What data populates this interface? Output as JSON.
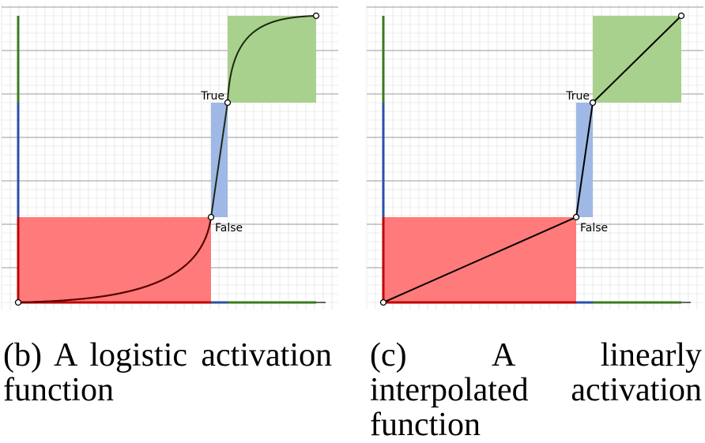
{
  "panels": [
    {
      "id": "b",
      "curve": "logistic",
      "caption": "(b) A logistic activation function",
      "label_true": "True",
      "label_false": "False"
    },
    {
      "id": "c",
      "curve": "linear",
      "caption": "(c) A linearly interpolated activation function",
      "label_true": "True",
      "label_false": "False"
    }
  ],
  "colors": {
    "false_region": "#ff7a7a",
    "uncertain_region": "#9fb8e6",
    "true_region": "#a9d18e",
    "axis_red": "#c00000",
    "axis_blue": "#2a4fa8",
    "axis_green": "#3a7a1e"
  }
}
